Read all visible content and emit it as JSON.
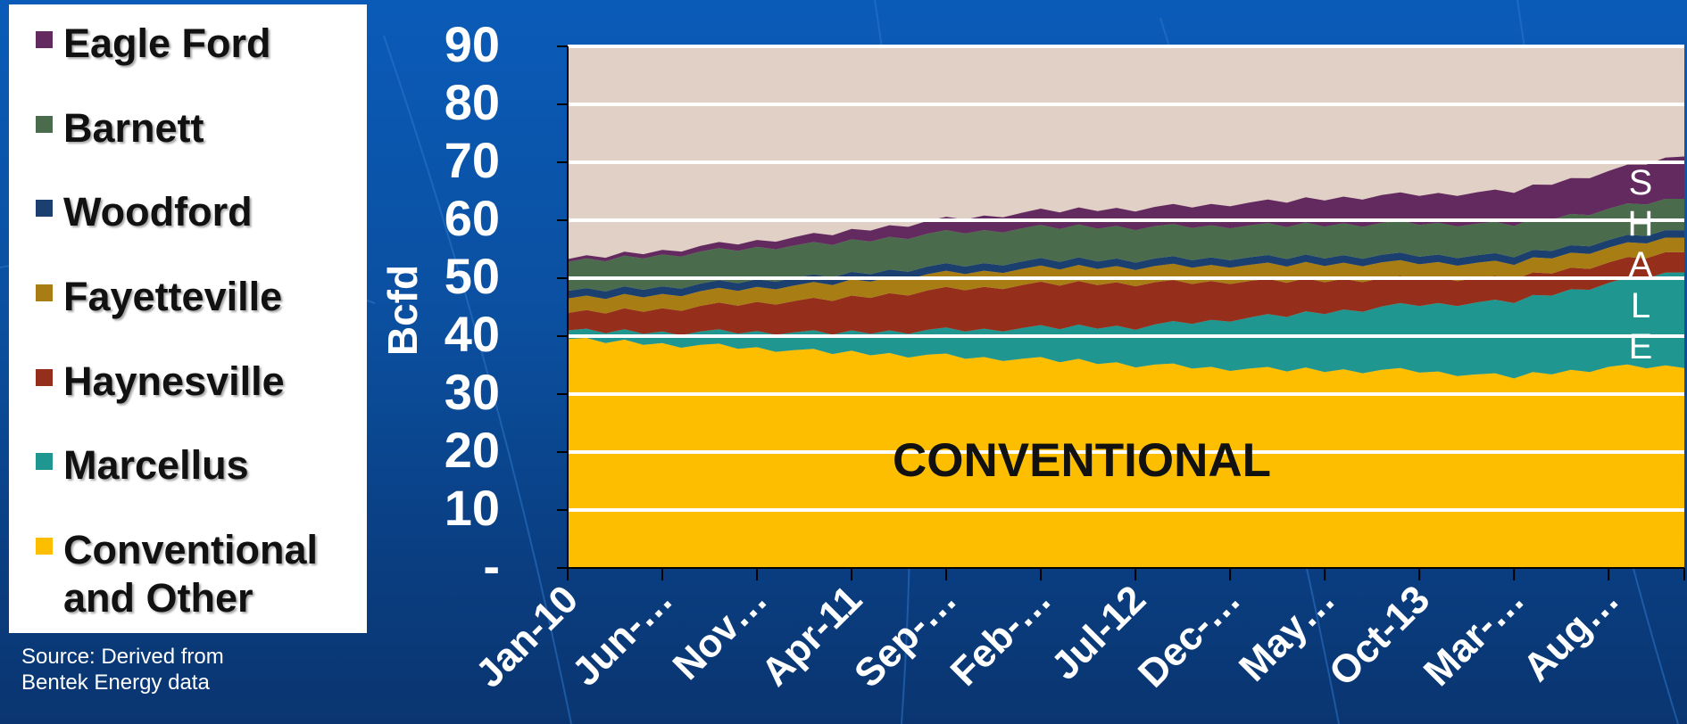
{
  "legend": {
    "items": [
      {
        "label": "Eagle Ford",
        "color": "#632a5f"
      },
      {
        "label": "Barnett",
        "color": "#4a6b4c"
      },
      {
        "label": "Woodford",
        "color": "#1b3f6e"
      },
      {
        "label": "Fayetteville",
        "color": "#a87e14"
      },
      {
        "label": "Haynesville",
        "color": "#952f1c"
      },
      {
        "label": "Marcellus",
        "color": "#1f968f"
      },
      {
        "label": "Conventional and Other",
        "color": "#fdbe00"
      }
    ]
  },
  "source_note": "Source:  Derived from Bentek Energy data",
  "chart_data": {
    "type": "area",
    "stacked": true,
    "ylabel": "Bcfd",
    "ylim": [
      0,
      90
    ],
    "yticks": [
      {
        "value": 0,
        "label": "-"
      },
      {
        "value": 10,
        "label": "10"
      },
      {
        "value": 20,
        "label": "20"
      },
      {
        "value": 30,
        "label": "30"
      },
      {
        "value": 40,
        "label": "40"
      },
      {
        "value": 50,
        "label": "50"
      },
      {
        "value": 60,
        "label": "60"
      },
      {
        "value": 70,
        "label": "70"
      },
      {
        "value": 80,
        "label": "80"
      },
      {
        "value": 90,
        "label": "90"
      }
    ],
    "x_tick_labels": [
      "Jan-10",
      "Jun-…",
      "Nov…",
      "Apr-11",
      "Sep-…",
      "Feb-…",
      "Jul-12",
      "Dec-…",
      "May…",
      "Oct-13",
      "Mar-…",
      "Aug…"
    ],
    "x_tick_positions": [
      0,
      5,
      10,
      15,
      20,
      25,
      30,
      35,
      40,
      45,
      50,
      55
    ],
    "x_range": [
      0,
      59
    ],
    "grid": "horizontal",
    "legend_position": "left",
    "plot_background": "#e1d0c6",
    "annotations": [
      "CONVENTIONAL",
      "SHALE"
    ],
    "anchor_months": [
      0,
      5,
      10,
      15,
      20,
      25,
      30,
      35,
      40,
      45,
      50,
      55,
      59
    ],
    "series": [
      {
        "name": "Conventional and Other",
        "color": "#fdbe00",
        "values": [
          39.5,
          38.5,
          38,
          37,
          36.5,
          36,
          35,
          34.5,
          34,
          34,
          33,
          34.5,
          35
        ]
      },
      {
        "name": "Marcellus",
        "color": "#1f968f",
        "values": [
          1.5,
          2,
          2.8,
          3.5,
          4.5,
          5.5,
          6.5,
          8.5,
          10,
          11.5,
          13,
          14.5,
          16.5
        ]
      },
      {
        "name": "Haynesville",
        "color": "#952f1c",
        "values": [
          3,
          4,
          5,
          6,
          7,
          7.5,
          7.5,
          6.5,
          5.5,
          4.5,
          4,
          3.5,
          3.5
        ]
      },
      {
        "name": "Fayetteville",
        "color": "#a87e14",
        "values": [
          2.5,
          2.5,
          2.6,
          2.8,
          2.8,
          2.8,
          2.8,
          2.8,
          2.8,
          2.7,
          2.6,
          2.6,
          2.5
        ]
      },
      {
        "name": "Woodford",
        "color": "#1b3f6e",
        "values": [
          1.3,
          1.3,
          1.3,
          1.3,
          1.3,
          1.3,
          1.3,
          1.3,
          1.3,
          1.3,
          1.3,
          1.3,
          1.3
        ]
      },
      {
        "name": "Barnett",
        "color": "#4a6b4c",
        "values": [
          5,
          5.5,
          5.6,
          5.6,
          5.7,
          5.7,
          5.6,
          5.5,
          5.5,
          5.5,
          5.4,
          5.4,
          5.4
        ]
      },
      {
        "name": "Eagle Ford",
        "color": "#632a5f",
        "values": [
          0.5,
          0.8,
          1.2,
          1.8,
          2.3,
          2.8,
          3.2,
          3.8,
          4.5,
          5,
          5.7,
          6.5,
          7.3
        ]
      }
    ]
  }
}
